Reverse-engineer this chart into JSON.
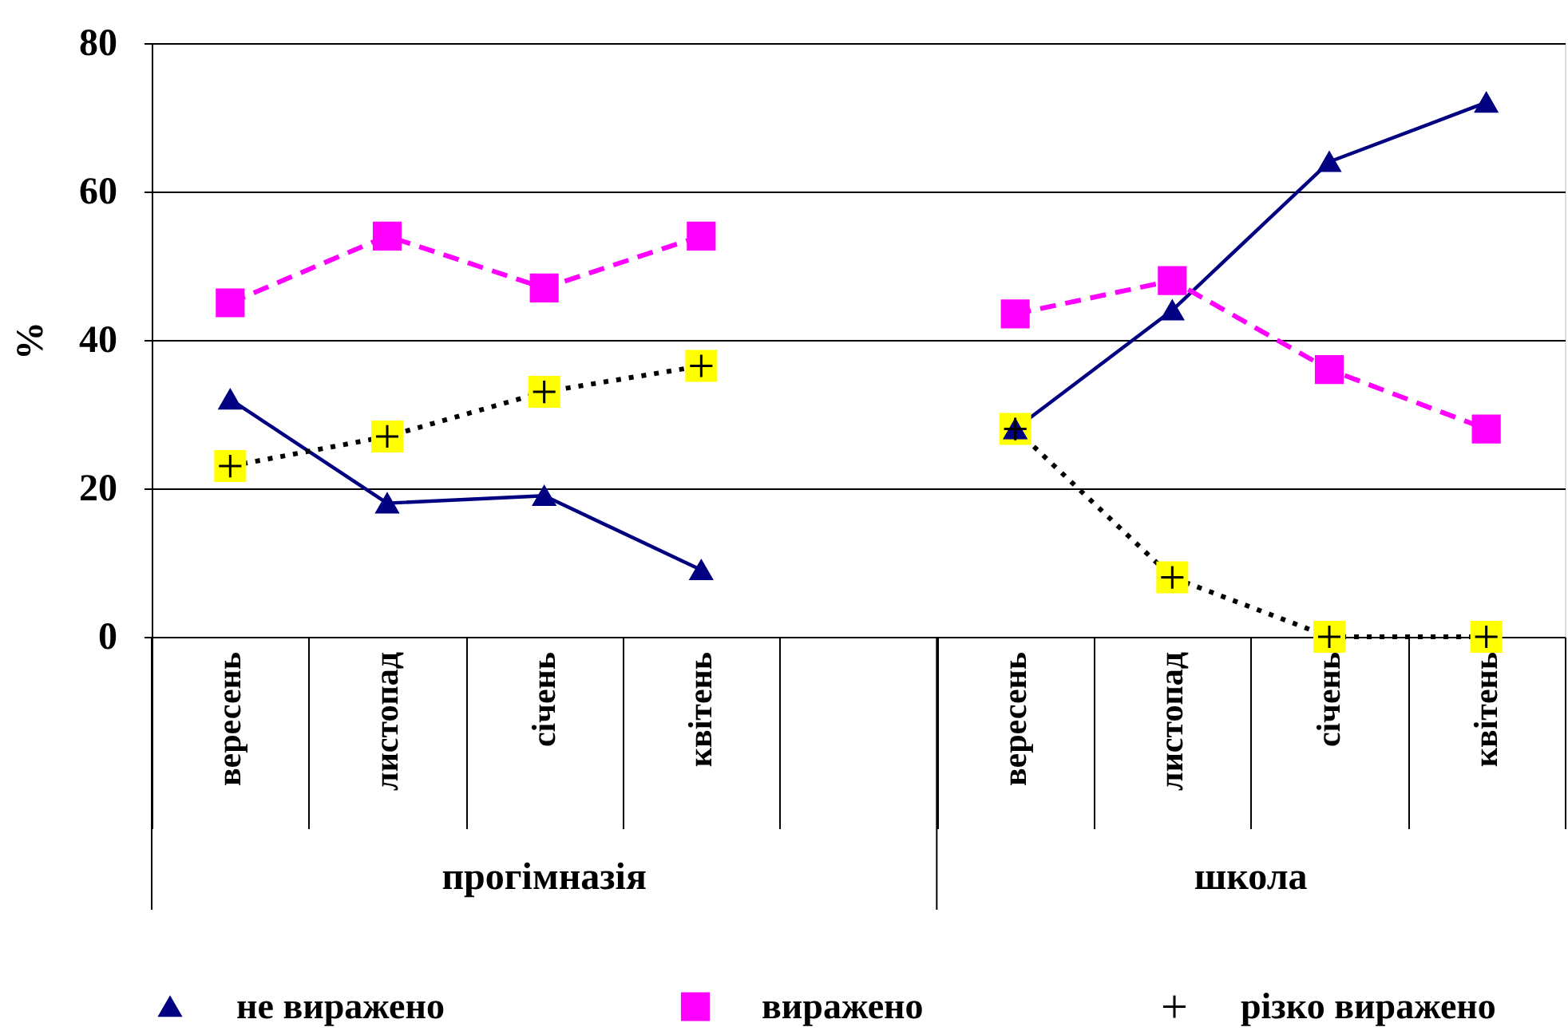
{
  "chart_data": {
    "type": "line",
    "ylabel": "%",
    "categories": [
      "вересень",
      "листопад",
      "січень",
      "квітень",
      null,
      "вересень",
      "листопад",
      "січень",
      "квітень"
    ],
    "annotations": [
      "прогімназія",
      "школа"
    ],
    "series": [
      {
        "name": "не виражено",
        "color": "#000080",
        "marker": "triangle",
        "line_style": "solid",
        "values": [
          32,
          18,
          19,
          9,
          null,
          28,
          44,
          64,
          72
        ]
      },
      {
        "name": "виражено",
        "color": "#ff00ff",
        "marker": "square",
        "line_style": "dashed",
        "values": [
          45,
          54,
          47,
          54,
          null,
          43.5,
          48,
          36,
          28
        ]
      },
      {
        "name": "різко виражено",
        "color": "#000000",
        "colors": [
          "#ffff00",
          "#ffff00",
          "#ffff00",
          "#ffff00",
          null,
          "#ffff00",
          "#ffff00",
          "#ffff00",
          "#ffff00"
        ],
        "marker": "square",
        "line_style": "dotted",
        "values": [
          23,
          27,
          33,
          36.5,
          null,
          28,
          8,
          0,
          0
        ]
      }
    ],
    "ylim": [
      0,
      80
    ],
    "yticks": [
      0,
      20,
      40,
      60,
      80
    ],
    "grid": "y",
    "legend": "bottom"
  }
}
